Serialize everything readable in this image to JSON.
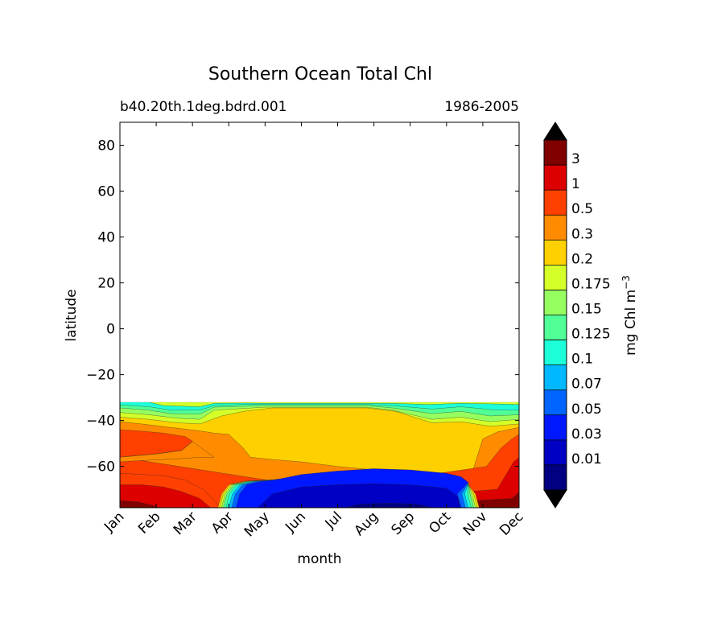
{
  "chart_data": {
    "type": "heatmap",
    "title": "Southern Ocean Total Chl",
    "subtitle_left": "b40.20th.1deg.bdrd.001",
    "subtitle_right": "1986-2005",
    "xlabel": "month",
    "ylabel": "latitude",
    "x_tick_labels": [
      "Jan",
      "Feb",
      "Mar",
      "Apr",
      "May",
      "Jun",
      "Jul",
      "Aug",
      "Sep",
      "Oct",
      "Nov",
      "Dec"
    ],
    "y_ticks": [
      80,
      60,
      40,
      20,
      0,
      -20,
      -40,
      -60
    ],
    "y_tick_labels": [
      "80",
      "60",
      "40",
      "20",
      "0",
      "−20",
      "−40",
      "−60"
    ],
    "ylim": [
      -78,
      90
    ],
    "colorbar": {
      "label": "mg Chl m",
      "label_superscript": "−3",
      "tick_labels": [
        "3",
        "1",
        "0.5",
        "0.3",
        "0.2",
        "0.175",
        "0.15",
        "0.125",
        "0.1",
        "0.07",
        "0.05",
        "0.03",
        "0.01"
      ],
      "colors": [
        "#800000",
        "#dd0000",
        "#ff4000",
        "#ff8c00",
        "#ffd000",
        "#d4ff28",
        "#96ff60",
        "#50ff96",
        "#1cffd8",
        "#00b8ff",
        "#0064ff",
        "#0018ff",
        "#0000c4",
        "#000080"
      ],
      "extend": "both"
    },
    "lat_range_with_data": [
      -78,
      -32
    ],
    "patterns": [
      "Oligotrophic coastal/ice zone (< 0.03) spans Apr–Oct near the Antarctic coast, lowest ~0.01 in Jun–Sep south of -70",
      "High values (0.5–3) near -70 to -78 in Nov–Feb austral summer",
      "Band of 0.3–0.5 near -45 to -55 in Jan–Mar and Nov–Dec",
      "Broad 0.175–0.2 plateau between -32 and -55 in winter months"
    ]
  }
}
